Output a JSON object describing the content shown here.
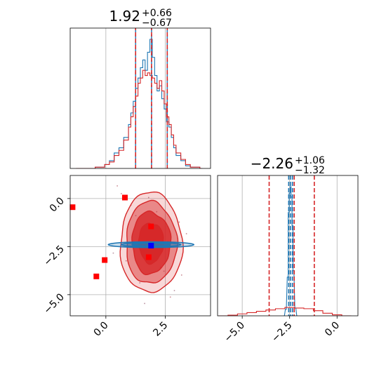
{
  "colors": {
    "red": "#d62728",
    "blue": "#1f77b4",
    "marker_blue": "#0000ff",
    "marker_red": "#ff0000",
    "grid": "#b0b0b0",
    "axis": "#000000"
  },
  "chart_data": [
    {
      "type": "histogram",
      "panel": "top-left",
      "title": {
        "value": "1.92",
        "plus": "+0.66",
        "minus": "−0.67"
      },
      "xlim": [
        -1.5,
        4.4
      ],
      "grid": true,
      "quantiles": [
        1.25,
        1.92,
        2.58
      ],
      "series": [
        {
          "name": "",
          "color": "blue",
          "x": [
            -1.2,
            -0.8,
            -0.4,
            0.0,
            0.2,
            0.4,
            0.6,
            0.8,
            1.0,
            1.1,
            1.2,
            1.3,
            1.4,
            1.5,
            1.6,
            1.7,
            1.8,
            1.9,
            2.0,
            2.1,
            2.2,
            2.3,
            2.4,
            2.5,
            2.6,
            2.7,
            2.8,
            2.9,
            3.0,
            3.2,
            3.4,
            3.6,
            4.0
          ],
          "values": [
            0,
            0,
            0.01,
            0.03,
            0.06,
            0.12,
            0.16,
            0.24,
            0.34,
            0.43,
            0.52,
            0.62,
            0.7,
            0.78,
            0.84,
            0.76,
            0.9,
            1.0,
            0.86,
            0.72,
            0.6,
            0.64,
            0.54,
            0.46,
            0.36,
            0.32,
            0.24,
            0.16,
            0.1,
            0.06,
            0.02,
            0.01,
            0
          ]
        },
        {
          "name": "",
          "color": "red",
          "x": [
            -1.2,
            -0.8,
            -0.4,
            0.0,
            0.2,
            0.4,
            0.6,
            0.8,
            1.0,
            1.1,
            1.2,
            1.3,
            1.4,
            1.5,
            1.6,
            1.7,
            1.8,
            1.9,
            2.0,
            2.1,
            2.2,
            2.3,
            2.4,
            2.5,
            2.6,
            2.7,
            2.8,
            2.9,
            3.0,
            3.2,
            3.4,
            3.6,
            4.0
          ],
          "values": [
            0,
            0,
            0.01,
            0.03,
            0.05,
            0.1,
            0.14,
            0.22,
            0.32,
            0.4,
            0.48,
            0.56,
            0.66,
            0.7,
            0.76,
            0.72,
            0.74,
            0.72,
            0.7,
            0.66,
            0.62,
            0.68,
            0.6,
            0.5,
            0.4,
            0.34,
            0.26,
            0.18,
            0.12,
            0.07,
            0.03,
            0.01,
            0
          ]
        }
      ]
    },
    {
      "type": "contour",
      "panel": "bottom-left",
      "xlim": [
        -1.5,
        4.4
      ],
      "ylim": [
        -6.1,
        1.2
      ],
      "xticks": [
        "0.0",
        "2.5"
      ],
      "yticks": [
        "0.0",
        "−2.5",
        "−5.0"
      ],
      "grid": true,
      "red_markers": [
        [
          -1.4,
          -0.45
        ],
        [
          0.8,
          0.05
        ],
        [
          1.9,
          -1.45
        ],
        [
          -0.05,
          -3.2
        ],
        [
          -0.4,
          -4.05
        ],
        [
          1.8,
          -3.05
        ]
      ],
      "blue_marker": [
        1.9,
        -2.45
      ],
      "red_density": {
        "center": [
          1.9,
          -2.3
        ],
        "spread_x": 1.3,
        "spread_y": 2.8
      },
      "blue_density": {
        "center": [
          1.9,
          -2.4
        ],
        "spread_x": 1.8,
        "spread_y": 0.15
      }
    },
    {
      "type": "histogram",
      "panel": "bottom-right",
      "title": {
        "value": "−2.26",
        "plus": "+1.06",
        "minus": "−1.32"
      },
      "xlim": [
        -6.3,
        1.1
      ],
      "xticks": [
        "−5.0",
        "−2.5",
        "0.0"
      ],
      "grid": true,
      "red_quantiles": [
        -3.58,
        -2.26,
        -1.2
      ],
      "blue_quantiles": [
        -2.55,
        -2.45,
        -2.35
      ],
      "series": [
        {
          "name": "",
          "color": "blue",
          "x": [
            -2.8,
            -2.7,
            -2.6,
            -2.55,
            -2.5,
            -2.45,
            -2.4,
            -2.35,
            -2.3,
            -2.2,
            -2.1
          ],
          "values": [
            0,
            0.05,
            0.3,
            0.8,
            0.95,
            1.0,
            0.92,
            0.7,
            0.35,
            0.06,
            0
          ]
        },
        {
          "name": "",
          "color": "red",
          "x": [
            -6.0,
            -5.5,
            -5.0,
            -4.5,
            -4.0,
            -3.5,
            -3.0,
            -2.5,
            -2.0,
            -1.5,
            -1.0,
            -0.5,
            0.0,
            0.5
          ],
          "values": [
            0,
            0.005,
            0.015,
            0.025,
            0.035,
            0.045,
            0.055,
            0.065,
            0.06,
            0.055,
            0.04,
            0.02,
            0.008,
            0
          ]
        }
      ]
    }
  ]
}
